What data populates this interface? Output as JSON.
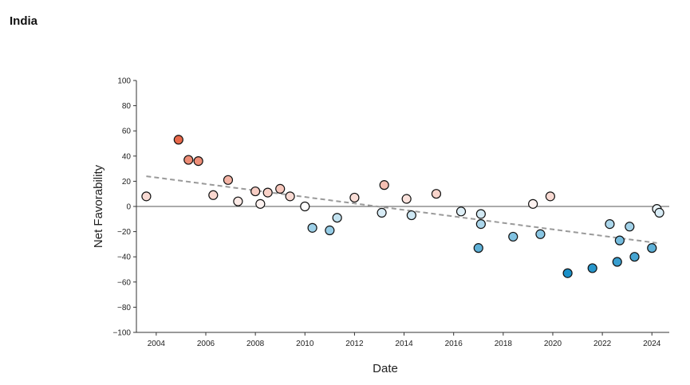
{
  "chart_data": {
    "type": "scatter",
    "title": "India",
    "xlabel": "Date",
    "ylabel": "Net Favorability",
    "xlim": [
      2003.2,
      2024.7
    ],
    "ylim": [
      -100,
      100
    ],
    "x_ticks": [
      2004,
      2006,
      2008,
      2010,
      2012,
      2014,
      2016,
      2018,
      2020,
      2022,
      2024
    ],
    "y_ticks": [
      -100,
      -80,
      -60,
      -40,
      -20,
      0,
      20,
      40,
      60,
      80,
      100
    ],
    "tick_labels_y": [
      "−100",
      "−80",
      "−60",
      "−40",
      "−20",
      "0",
      "20",
      "40",
      "60",
      "80",
      "100"
    ],
    "zero_line": true,
    "trend_line": {
      "x": [
        2003.6,
        2024.2
      ],
      "y": [
        24,
        -29
      ]
    },
    "color_scale": {
      "negative": "#1a90c8",
      "neutral": "#ffffff",
      "positive": "#e8684a"
    },
    "points": [
      {
        "x": 2003.6,
        "y": 8
      },
      {
        "x": 2004.9,
        "y": 53
      },
      {
        "x": 2005.3,
        "y": 37
      },
      {
        "x": 2005.7,
        "y": 36
      },
      {
        "x": 2006.3,
        "y": 9
      },
      {
        "x": 2006.9,
        "y": 21
      },
      {
        "x": 2007.3,
        "y": 4
      },
      {
        "x": 2008.0,
        "y": 12
      },
      {
        "x": 2008.2,
        "y": 2
      },
      {
        "x": 2008.5,
        "y": 11
      },
      {
        "x": 2009.0,
        "y": 14
      },
      {
        "x": 2009.4,
        "y": 8
      },
      {
        "x": 2010.0,
        "y": 0
      },
      {
        "x": 2010.3,
        "y": -17
      },
      {
        "x": 2011.0,
        "y": -19
      },
      {
        "x": 2011.3,
        "y": -9
      },
      {
        "x": 2012.0,
        "y": 7
      },
      {
        "x": 2013.1,
        "y": -5
      },
      {
        "x": 2013.2,
        "y": 17
      },
      {
        "x": 2014.1,
        "y": 6
      },
      {
        "x": 2014.3,
        "y": -7
      },
      {
        "x": 2015.3,
        "y": 10
      },
      {
        "x": 2016.3,
        "y": -4
      },
      {
        "x": 2017.0,
        "y": -33
      },
      {
        "x": 2017.1,
        "y": -14
      },
      {
        "x": 2017.1,
        "y": -6
      },
      {
        "x": 2018.4,
        "y": -24
      },
      {
        "x": 2019.2,
        "y": 2
      },
      {
        "x": 2019.5,
        "y": -22
      },
      {
        "x": 2019.9,
        "y": 8
      },
      {
        "x": 2020.6,
        "y": -53
      },
      {
        "x": 2021.6,
        "y": -49
      },
      {
        "x": 2022.3,
        "y": -14
      },
      {
        "x": 2022.6,
        "y": -44
      },
      {
        "x": 2022.7,
        "y": -27
      },
      {
        "x": 2023.1,
        "y": -16
      },
      {
        "x": 2023.3,
        "y": -40
      },
      {
        "x": 2024.0,
        "y": -33
      },
      {
        "x": 2024.2,
        "y": -2
      },
      {
        "x": 2024.3,
        "y": -5
      }
    ]
  }
}
